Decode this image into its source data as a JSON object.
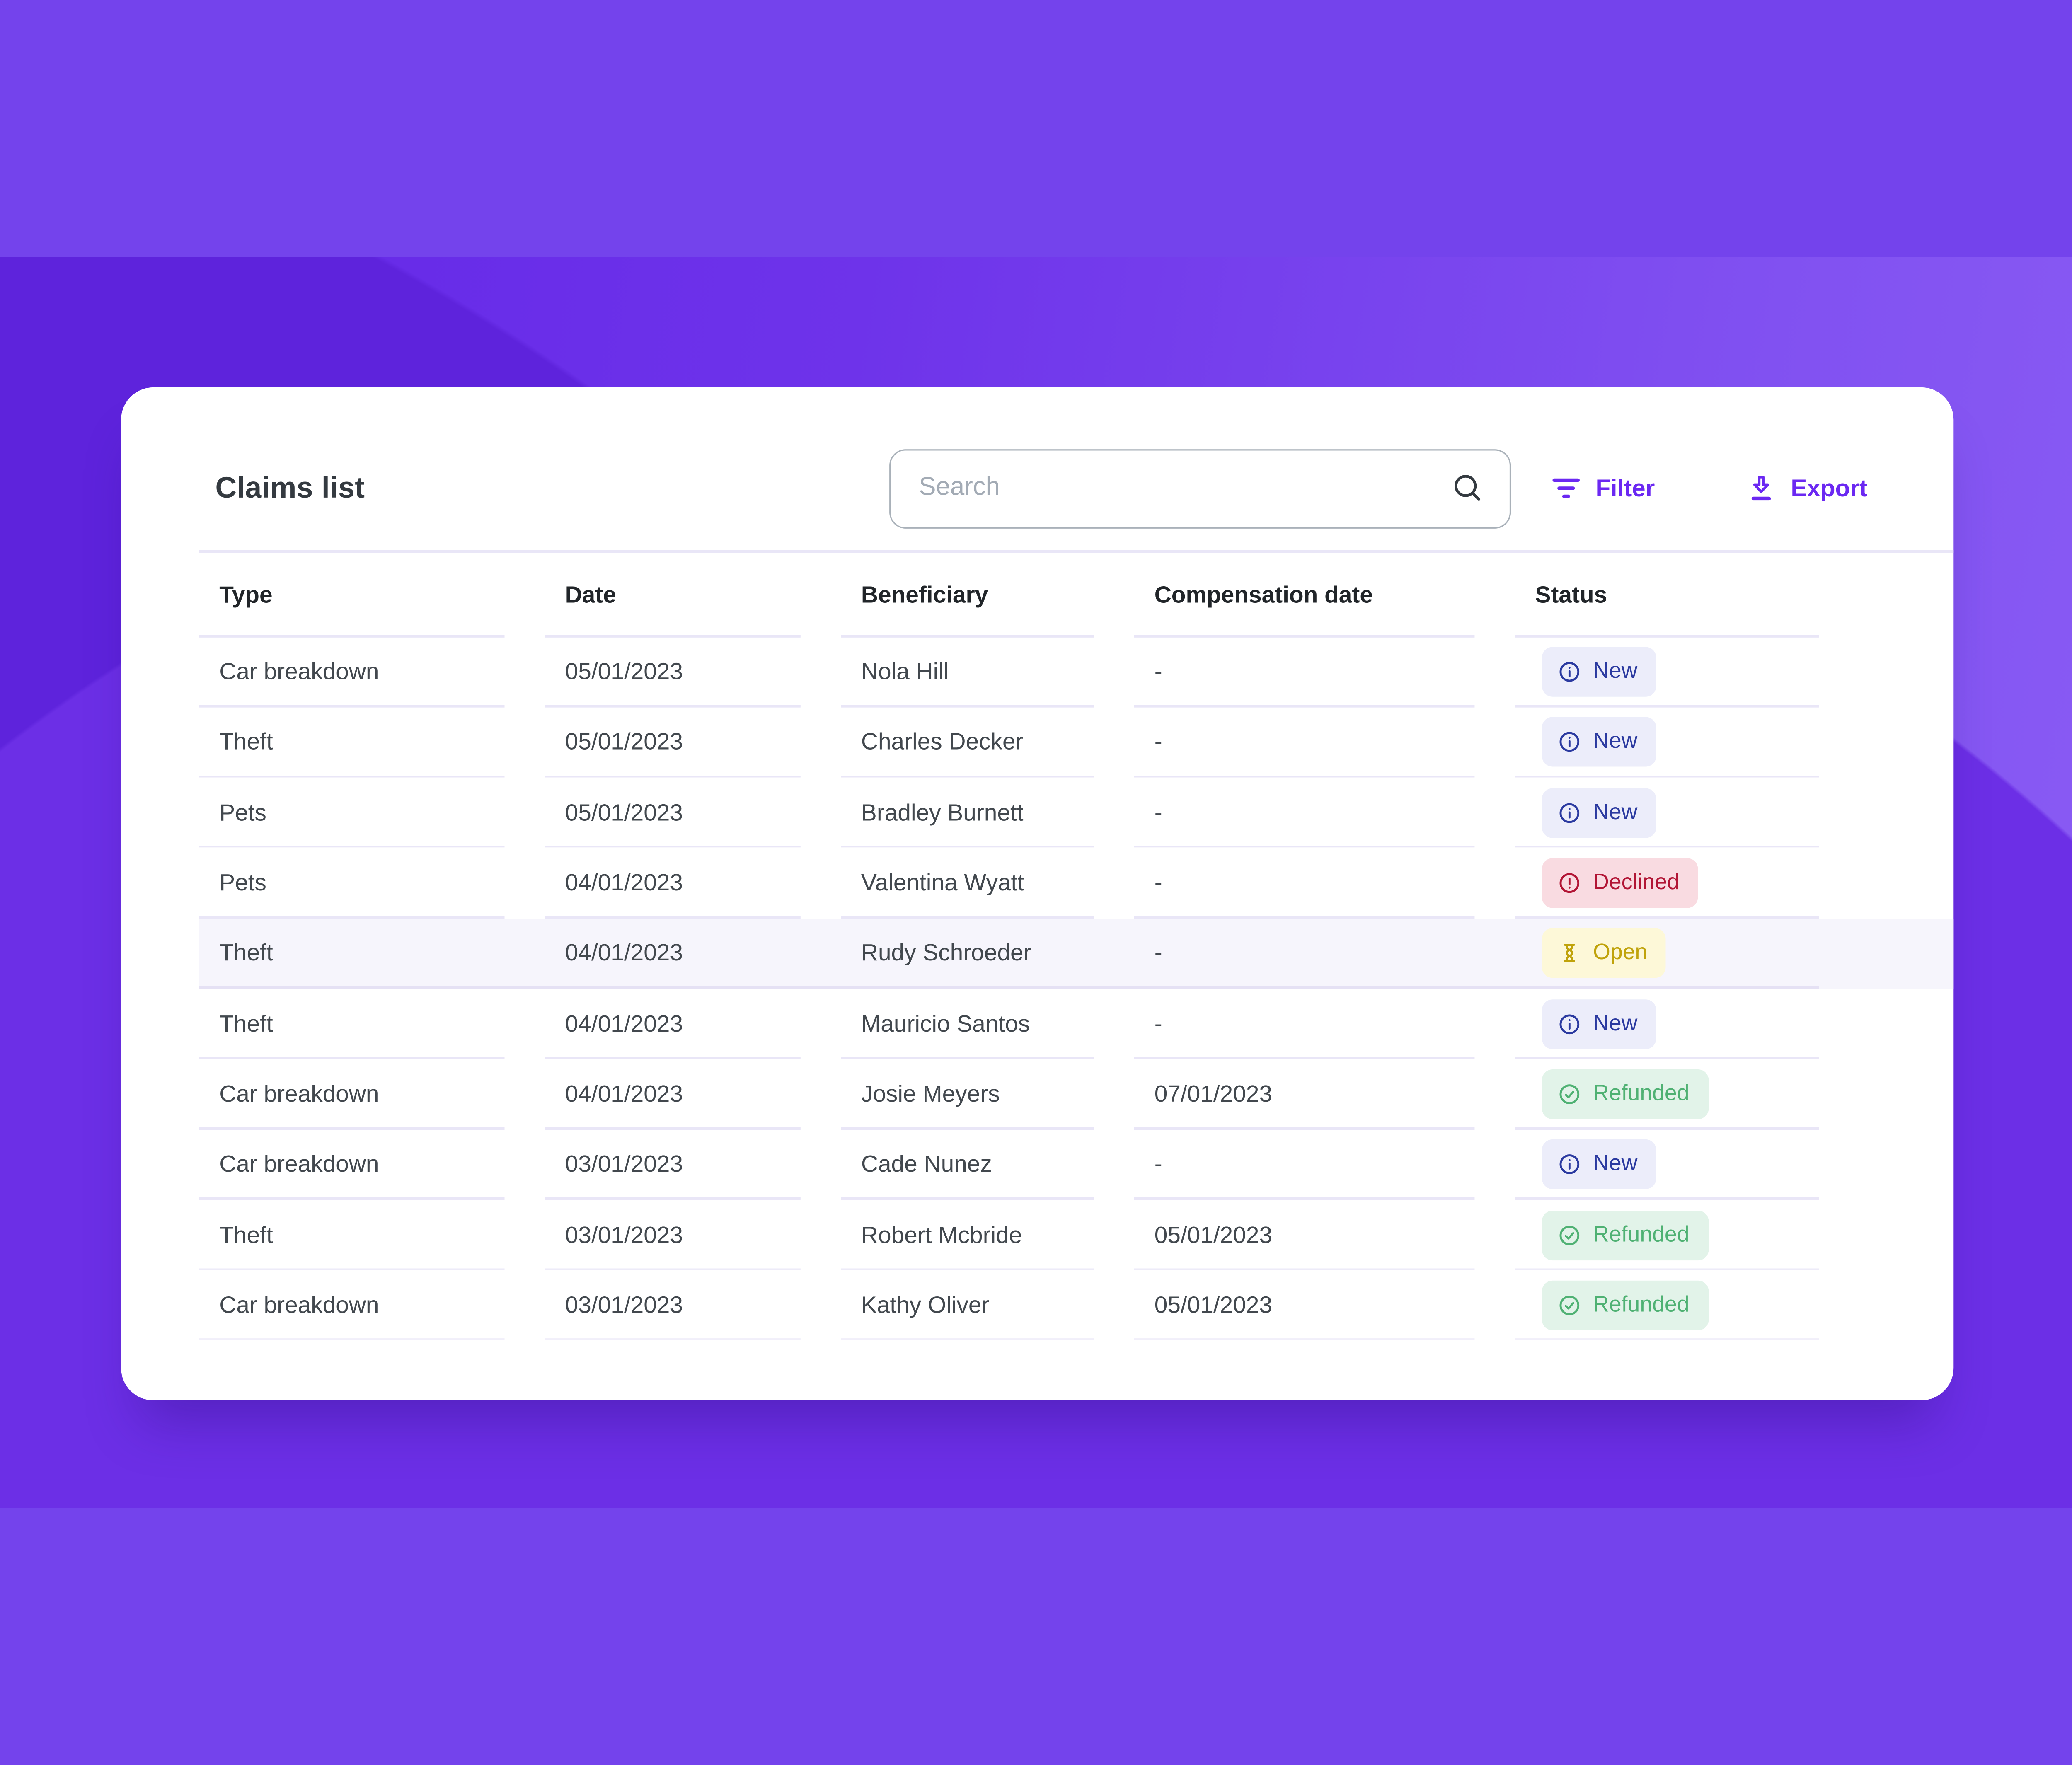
{
  "header": {
    "title": "Claims list"
  },
  "toolbar": {
    "search": {
      "placeholder": "Search",
      "icon": "search-icon"
    },
    "filter": {
      "label": "Filter",
      "icon": "filter-icon"
    },
    "export": {
      "label": "Export",
      "icon": "download-icon"
    }
  },
  "table": {
    "columns": [
      "Type",
      "Date",
      "Beneficiary",
      "Compensation date",
      "Status"
    ],
    "rows": [
      {
        "type": "Car breakdown",
        "date": "05/01/2023",
        "beneficiary": "Nola Hill",
        "compensation_date": "-",
        "status": {
          "key": "new",
          "label": "New",
          "icon": "info-icon"
        },
        "highlighted": false
      },
      {
        "type": "Theft",
        "date": "05/01/2023",
        "beneficiary": "Charles Decker",
        "compensation_date": "-",
        "status": {
          "key": "new",
          "label": "New",
          "icon": "info-icon"
        },
        "highlighted": false
      },
      {
        "type": "Pets",
        "date": "05/01/2023",
        "beneficiary": "Bradley Burnett",
        "compensation_date": "-",
        "status": {
          "key": "new",
          "label": "New",
          "icon": "info-icon"
        },
        "highlighted": false
      },
      {
        "type": "Pets",
        "date": "04/01/2023",
        "beneficiary": "Valentina Wyatt",
        "compensation_date": "-",
        "status": {
          "key": "declined",
          "label": "Declined",
          "icon": "alert-icon"
        },
        "highlighted": false
      },
      {
        "type": "Theft",
        "date": "04/01/2023",
        "beneficiary": "Rudy Schroeder",
        "compensation_date": "-",
        "status": {
          "key": "open",
          "label": "Open",
          "icon": "hourglass-icon"
        },
        "highlighted": true
      },
      {
        "type": "Theft",
        "date": "04/01/2023",
        "beneficiary": "Mauricio Santos",
        "compensation_date": "-",
        "status": {
          "key": "new",
          "label": "New",
          "icon": "info-icon"
        },
        "highlighted": false
      },
      {
        "type": "Car breakdown",
        "date": "04/01/2023",
        "beneficiary": "Josie Meyers",
        "compensation_date": "07/01/2023",
        "status": {
          "key": "refunded",
          "label": "Refunded",
          "icon": "check-icon"
        },
        "highlighted": false
      },
      {
        "type": "Car breakdown",
        "date": "03/01/2023",
        "beneficiary": "Cade Nunez",
        "compensation_date": "-",
        "status": {
          "key": "new",
          "label": "New",
          "icon": "info-icon"
        },
        "highlighted": false
      },
      {
        "type": "Theft",
        "date": "03/01/2023",
        "beneficiary": "Robert Mcbride",
        "compensation_date": "05/01/2023",
        "status": {
          "key": "refunded",
          "label": "Refunded",
          "icon": "check-icon"
        },
        "highlighted": false
      },
      {
        "type": "Car breakdown",
        "date": "03/01/2023",
        "beneficiary": "Kathy Oliver",
        "compensation_date": "05/01/2023",
        "status": {
          "key": "refunded",
          "label": "Refunded",
          "icon": "check-icon"
        },
        "highlighted": false
      }
    ]
  },
  "colors": {
    "background_purple": "#7443ec",
    "accent_purple": "#6b28f2",
    "card_background": "#ffffff",
    "row_divider": "#e9e6f7",
    "highlight_row_bg": "#f6f5fc",
    "status_new_text": "#2b3aa0",
    "status_new_bg": "#ecedfa",
    "status_declined_text": "#b21535",
    "status_declined_bg": "#f9dbe1",
    "status_open_text": "#c0a30b",
    "status_open_bg": "#fdf8d8",
    "status_refunded_text": "#4fb173",
    "status_refunded_bg": "#e2f3e9"
  }
}
